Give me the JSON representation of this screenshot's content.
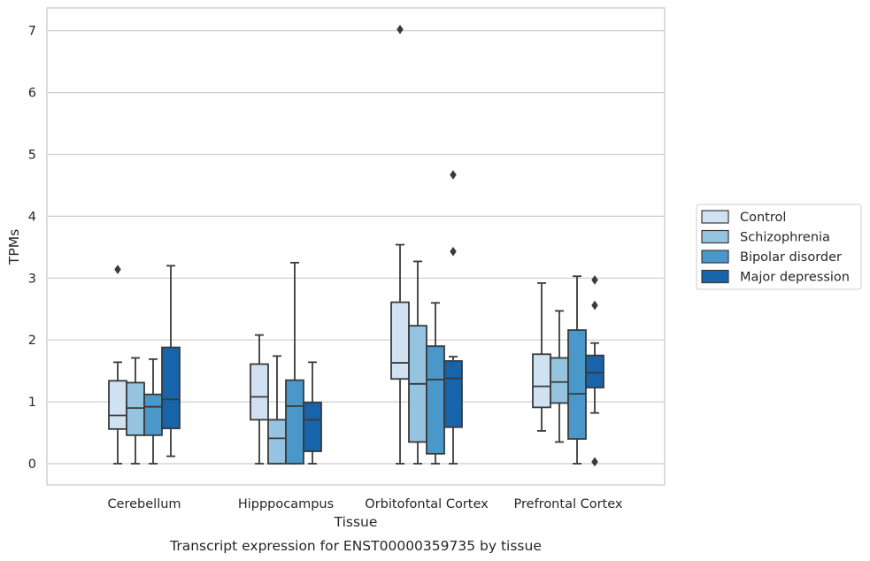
{
  "chart_data": {
    "type": "box",
    "title": "",
    "caption": "Transcript expression for ENST00000359735 by tissue",
    "xlabel": "Tissue",
    "ylabel": "TPMs",
    "ylim": [
      -0.33,
      7.37
    ],
    "yticks": [
      "0",
      "1",
      "2",
      "3",
      "4",
      "5",
      "6",
      "7"
    ],
    "categories": [
      "Cerebellum",
      "Hipppocampus",
      "Orbitofontal Cortex",
      "Prefrontal Cortex"
    ],
    "grid": true,
    "legend_position": "right",
    "series": [
      {
        "name": "Control",
        "color": "#d0e1f2",
        "boxes": [
          {
            "whislo": 0.0,
            "q1": 0.56,
            "med": 0.78,
            "q3": 1.34,
            "whishi": 1.64,
            "fliers": [
              3.14
            ]
          },
          {
            "whislo": 0.0,
            "q1": 0.71,
            "med": 1.08,
            "q3": 1.61,
            "whishi": 2.08,
            "fliers": []
          },
          {
            "whislo": 0.0,
            "q1": 1.37,
            "med": 1.63,
            "q3": 2.61,
            "whishi": 3.54,
            "fliers": [
              7.02
            ]
          },
          {
            "whislo": 0.53,
            "q1": 0.91,
            "med": 1.25,
            "q3": 1.77,
            "whishi": 2.92,
            "fliers": []
          }
        ]
      },
      {
        "name": "Schizophrenia",
        "color": "#94c4df",
        "boxes": [
          {
            "whislo": 0.0,
            "q1": 0.46,
            "med": 0.9,
            "q3": 1.31,
            "whishi": 1.71,
            "fliers": []
          },
          {
            "whislo": 0.0,
            "q1": 0.0,
            "med": 0.41,
            "q3": 0.71,
            "whishi": 1.74,
            "fliers": []
          },
          {
            "whislo": 0.0,
            "q1": 0.35,
            "med": 1.29,
            "q3": 2.23,
            "whishi": 3.27,
            "fliers": []
          },
          {
            "whislo": 0.35,
            "q1": 0.98,
            "med": 1.32,
            "q3": 1.71,
            "whishi": 2.47,
            "fliers": []
          }
        ]
      },
      {
        "name": "Bipolar disorder",
        "color": "#4a98c9",
        "boxes": [
          {
            "whislo": 0.0,
            "q1": 0.46,
            "med": 0.92,
            "q3": 1.12,
            "whishi": 1.69,
            "fliers": []
          },
          {
            "whislo": 0.0,
            "q1": 0.0,
            "med": 0.93,
            "q3": 1.35,
            "whishi": 3.25,
            "fliers": []
          },
          {
            "whislo": 0.0,
            "q1": 0.16,
            "med": 1.36,
            "q3": 1.9,
            "whishi": 2.6,
            "fliers": []
          },
          {
            "whislo": 0.0,
            "q1": 0.4,
            "med": 1.13,
            "q3": 2.16,
            "whishi": 3.03,
            "fliers": []
          }
        ]
      },
      {
        "name": "Major depression",
        "color": "#1764ab",
        "boxes": [
          {
            "whislo": 0.12,
            "q1": 0.57,
            "med": 1.04,
            "q3": 1.88,
            "whishi": 3.2,
            "fliers": []
          },
          {
            "whislo": 0.0,
            "q1": 0.2,
            "med": 0.71,
            "q3": 0.99,
            "whishi": 1.64,
            "fliers": []
          },
          {
            "whislo": 0.0,
            "q1": 0.59,
            "med": 1.38,
            "q3": 1.66,
            "whishi": 1.73,
            "fliers": [
              3.43,
              4.67
            ]
          },
          {
            "whislo": 0.82,
            "q1": 1.23,
            "med": 1.47,
            "q3": 1.75,
            "whishi": 1.95,
            "fliers": [
              0.03,
              2.56,
              2.97
            ]
          }
        ]
      }
    ]
  }
}
